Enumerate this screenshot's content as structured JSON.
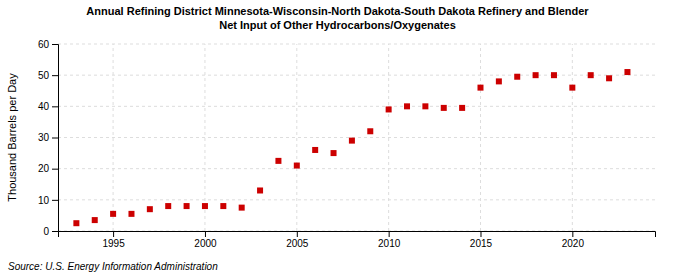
{
  "chart_data": {
    "type": "scatter",
    "title": "Annual Refining District Minnesota-Wisconsin-North Dakota-South Dakota Refinery and Blender",
    "subtitle": "Net Input of Other Hydrocarbons/Oxygenates",
    "ylabel": "Thousand Barrels per Day",
    "annotations": [
      "Source: U.S. Energy Information Administration"
    ],
    "x": [
      1993,
      1994,
      1995,
      1996,
      1997,
      1998,
      1999,
      2000,
      2001,
      2002,
      2003,
      2004,
      2005,
      2006,
      2007,
      2008,
      2009,
      2010,
      2011,
      2012,
      2013,
      2014,
      2015,
      2016,
      2017,
      2018,
      2019,
      2020,
      2021,
      2022,
      2023
    ],
    "values": [
      2.5,
      3.5,
      5.5,
      5.5,
      7.0,
      8.0,
      8.0,
      8.0,
      8.0,
      7.5,
      13.0,
      22.5,
      21.0,
      26.0,
      25.0,
      29.0,
      32.0,
      39.0,
      40.0,
      40.0,
      39.5,
      39.5,
      46.0,
      48.0,
      49.5,
      50.0,
      50.0,
      46.0,
      50.0,
      49.0,
      51.0
    ],
    "color": "#cc0000",
    "marker": "square",
    "xlim": [
      1992.0,
      2024.5
    ],
    "xticks": [
      1995,
      2000,
      2005,
      2010,
      2015,
      2020
    ],
    "ylim": [
      0,
      60
    ],
    "yticks": [
      0,
      10,
      20,
      30,
      40,
      50,
      60
    ],
    "grid": true
  }
}
